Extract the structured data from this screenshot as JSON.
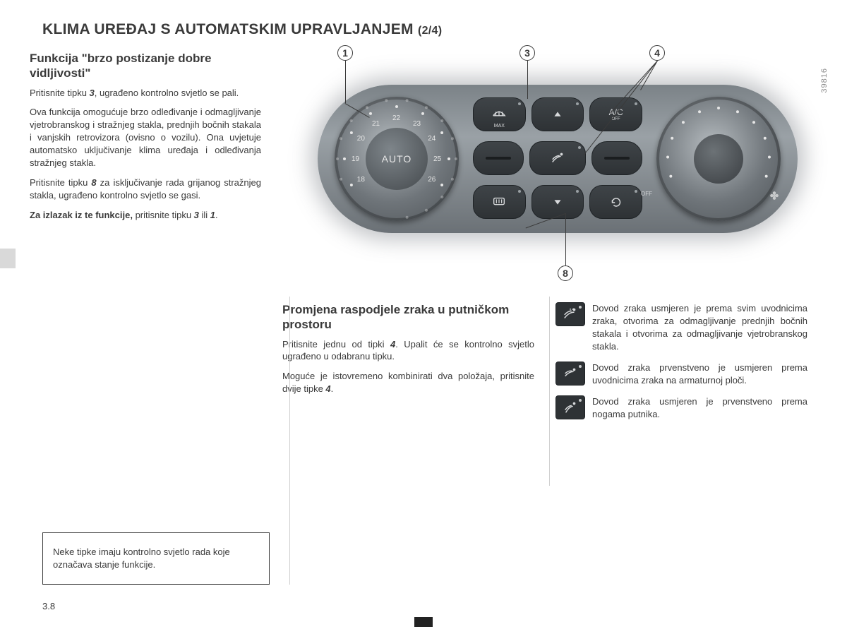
{
  "page": {
    "title_main": "KLIMA UREĐAJ S AUTOMATSKIM UPRAVLJANJEM",
    "title_sub": "(2/4)",
    "page_number": "3.8",
    "side_code": "39816"
  },
  "col1": {
    "h": "Funkcija \"brzo postizanje dobre vidljivosti\"",
    "p1a": "Pritisnite tipku ",
    "p1b": ", ugrađeno kontrolno svjetlo se pali.",
    "ref1": "3",
    "p2": "Ova funkcija omogućuje brzo odleđivanje i odmagljivanje vjetrobranskog i stražnjeg stakla, prednjih bočnih stakala i vanjskih retrovizora (ovisno o vozilu). Ona uvjetuje automatsko uključivanje klima uređaja i odleđivanja stražnjeg stakla.",
    "p3a": "Pritisnite tipku ",
    "ref2": "8",
    "p3b": " za isključivanje rada grijanog stražnjeg stakla, ugrađeno kontrolno svjetlo se gasi.",
    "p4a": "Za izlazak iz te funkcije,",
    "p4b": " pritisnite tipku ",
    "ref3": "3",
    "p4c": " ili ",
    "ref4": "1",
    "p4d": "."
  },
  "note": "Neke tipke imaju kontrolno svjetlo rada koje označava stanje funkcije.",
  "col2": {
    "h": "Promjena raspodjele zraka u putničkom prostoru",
    "p1a": "Pritisnite jednu od tipki ",
    "ref1": "4",
    "p1b": ". Upalit će se kontrolno svjetlo ugrađeno u odabranu tipku.",
    "p2a": "Moguće je istovremeno kombinirati dva položaja, pritisnite dvije tipke ",
    "ref2": "4",
    "p2b": "."
  },
  "col3": {
    "i1": "Dovod zraka usmjeren je prema svim uvodnicima zraka, otvorima za odmagljivanje prednjih bočnih stakala i otvorima za odmagljivanje vjetrobranskog stakla.",
    "i2": "Dovod zraka prvenstveno je usmjeren prema uvodnicima zraka na armaturnoj ploči.",
    "i3": "Dovod zraka usmjeren je prvenstveno prema nogama putnika."
  },
  "callouts": {
    "c1": "1",
    "c3": "3",
    "c4": "4",
    "c8": "8"
  },
  "dial": {
    "label": "AUTO",
    "temps": [
      "18",
      "19",
      "20",
      "21",
      "22",
      "23",
      "24",
      "25",
      "26"
    ]
  },
  "buttons": {
    "ac": "A/C",
    "ac_sub": "OFF",
    "off": "OFF",
    "max": "MAX"
  }
}
